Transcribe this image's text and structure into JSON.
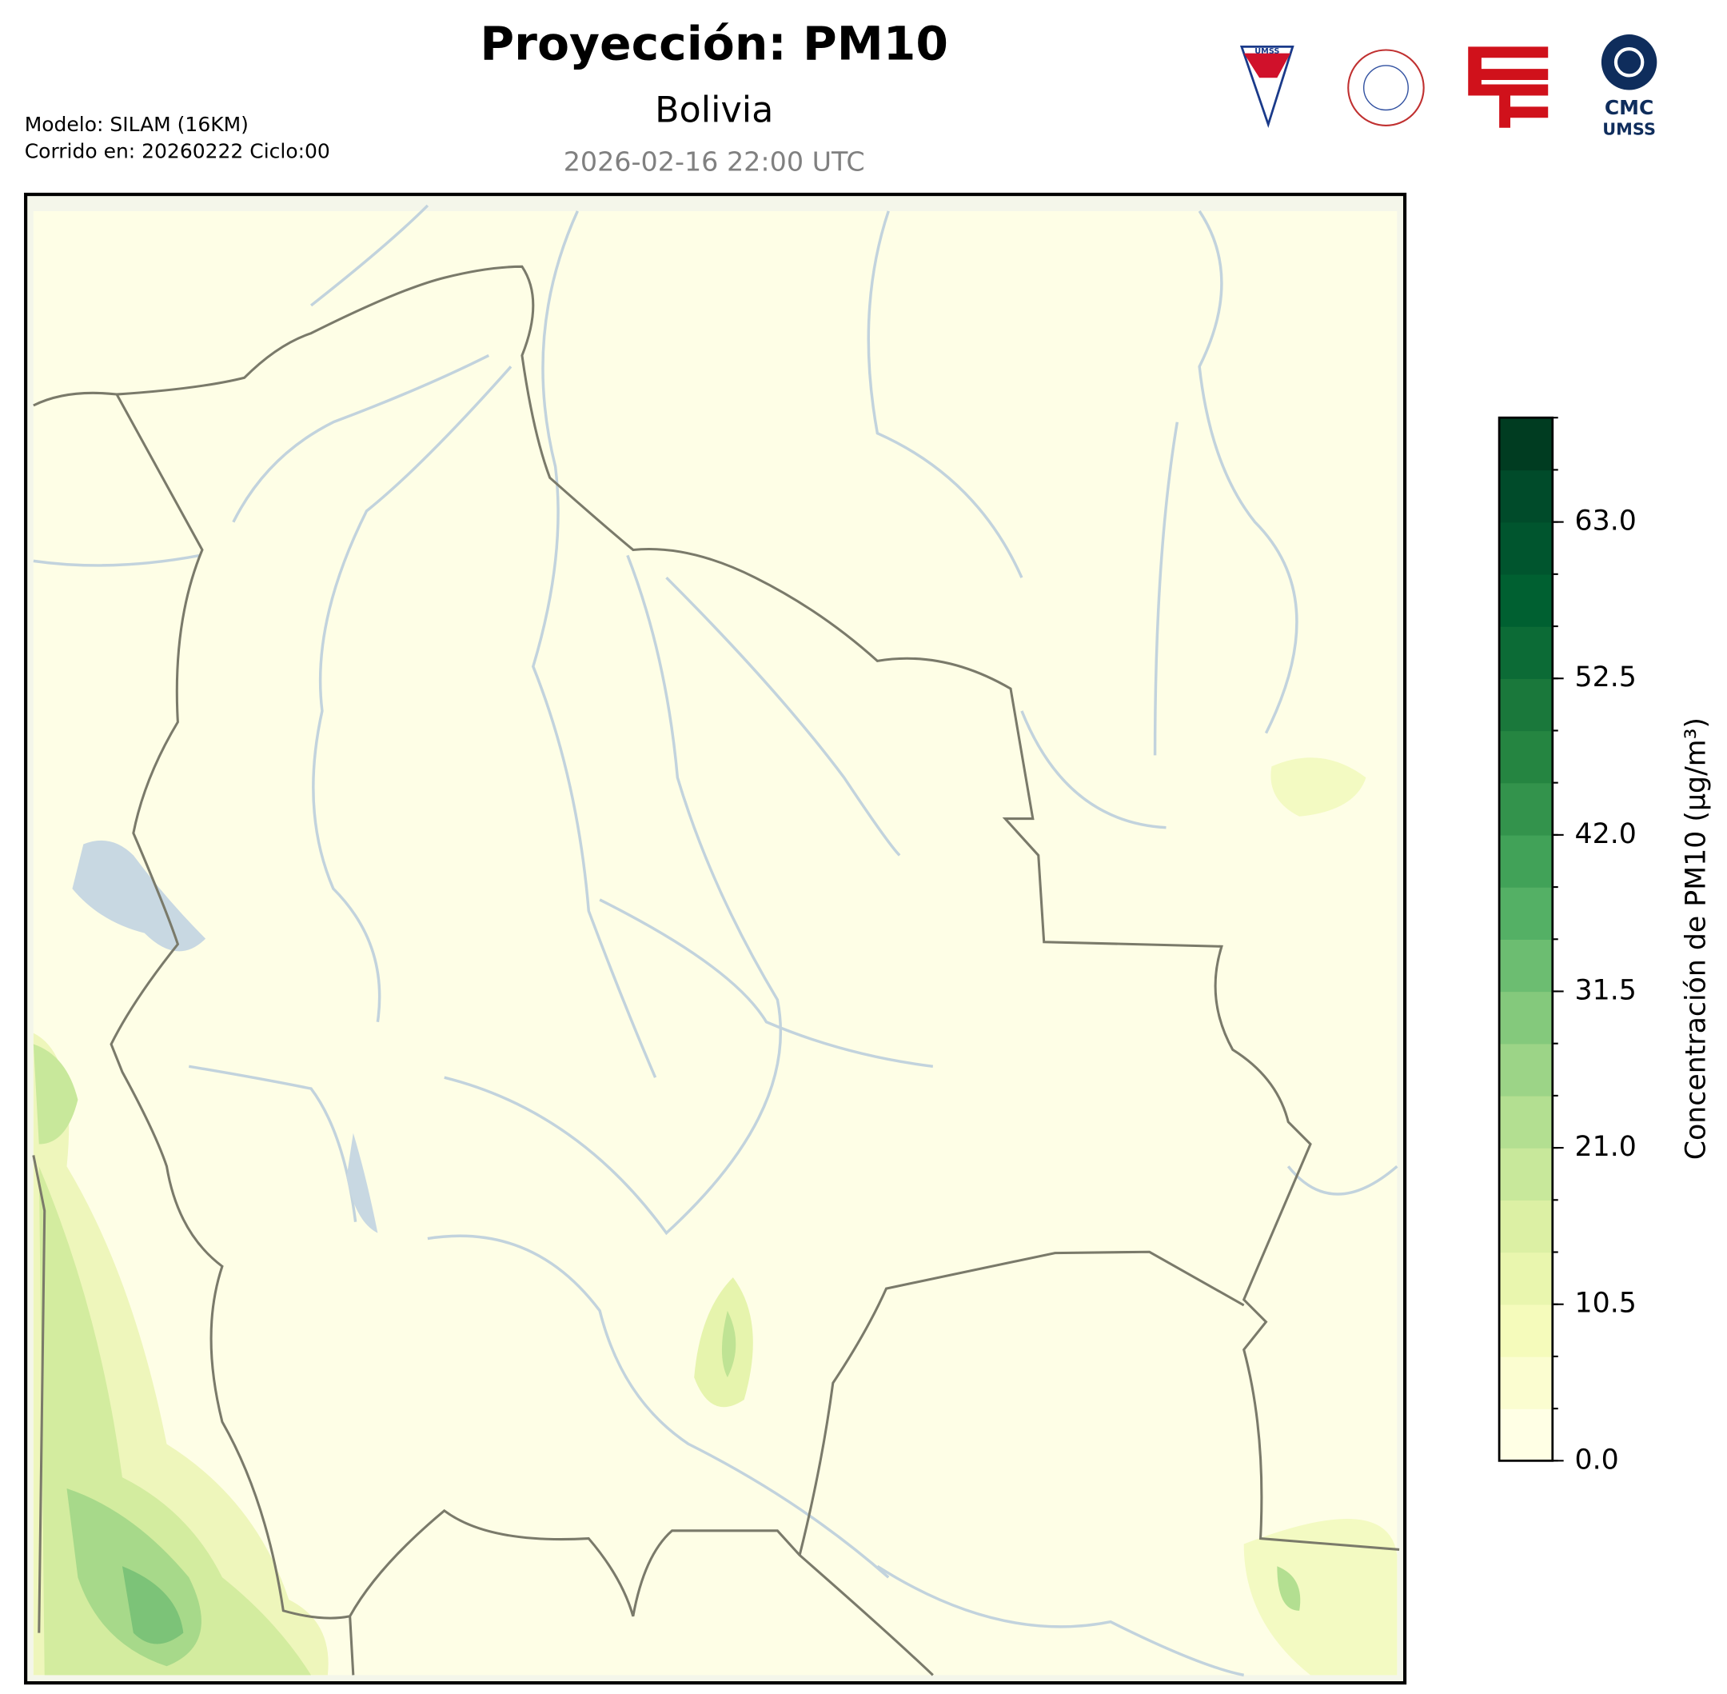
{
  "header": {
    "title": "Proyección: PM10",
    "subtitle": "Bolivia",
    "datetime": "2026-02-16 22:00 UTC",
    "model": "Modelo: SILAM (16KM)",
    "run": "Corrido en: 20260222 Ciclo:00"
  },
  "logos": {
    "shield": "UMSS",
    "cmc_top": "CMC",
    "cmc_bottom": "UMSS"
  },
  "chart_data": {
    "type": "colorbar",
    "label": "Concentración de PM10 (µg/m³)",
    "levels": [
      0,
      3.5,
      7,
      10.5,
      14,
      17.5,
      21,
      24.5,
      28,
      31.5,
      35,
      38.5,
      42,
      45.5,
      49,
      52.5,
      56,
      59.5,
      63,
      66.5,
      70
    ],
    "colors": [
      "#ffffe5",
      "#fbfdd0",
      "#f5fbbb",
      "#e9f6ae",
      "#dcf0a4",
      "#c8e89b",
      "#b3df91",
      "#9cd487",
      "#84c97c",
      "#6cbd71",
      "#54b065",
      "#41a258",
      "#33934c",
      "#258541",
      "#1a783b",
      "#0c6b36",
      "#006031",
      "#00552e",
      "#004b2a",
      "#003c21"
    ],
    "lim": [
      0,
      70
    ],
    "ticks": [
      {
        "value": 0,
        "label": "0.0"
      },
      {
        "value": 10.5,
        "label": "10.5"
      },
      {
        "value": 21,
        "label": "21.0"
      },
      {
        "value": 31.5,
        "label": "31.5"
      },
      {
        "value": 42,
        "label": "42.0"
      },
      {
        "value": 52.5,
        "label": "52.5"
      },
      {
        "value": 63,
        "label": "63.0"
      }
    ]
  }
}
